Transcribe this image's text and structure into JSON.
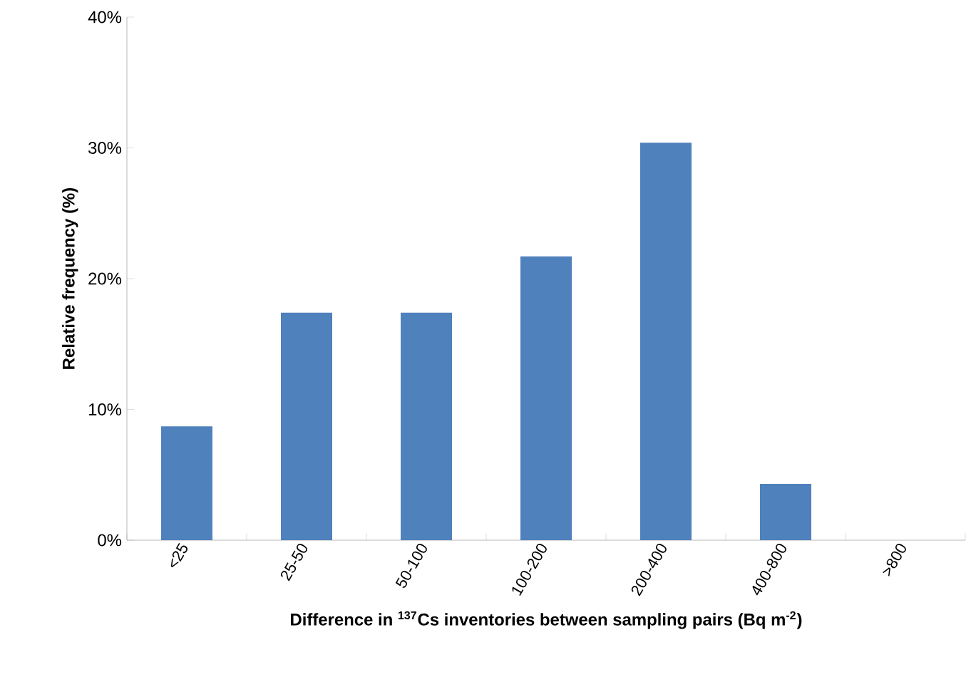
{
  "chart_data": {
    "type": "bar",
    "xlabel": "Difference  in $^{137}$Cs inventories between sampling pairs (Bq m$^{-2}$)",
    "ylabel": "Relative frequency (%)",
    "categories": [
      "<25",
      "25-50",
      "50-100",
      "100-200",
      "200-400",
      "400-800",
      ">800"
    ],
    "values": [
      8.7,
      17.4,
      17.4,
      21.7,
      30.4,
      4.3,
      0
    ],
    "color": "#4f81bd",
    "ylim": [
      0,
      40
    ],
    "yticks": [
      {
        "value": 0,
        "label": "0%"
      },
      {
        "value": 10,
        "label": "10%"
      },
      {
        "value": 20,
        "label": "20%"
      },
      {
        "value": 30,
        "label": "30%"
      },
      {
        "value": 40,
        "label": "40%"
      }
    ],
    "grid": false
  }
}
